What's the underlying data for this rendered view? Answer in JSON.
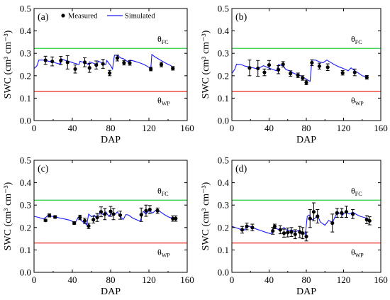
{
  "chart_data": [
    {
      "type": "line",
      "panel_label": "(a)",
      "xlabel": "DAP",
      "ylabel": "SWC (cm³ cm⁻³)",
      "xlim": [
        0,
        160
      ],
      "ylim": [
        0,
        0.5
      ],
      "xticks": [
        "0",
        "40",
        "80",
        "120",
        "160"
      ],
      "yticks": [
        "0.0",
        "0.1",
        "0.2",
        "0.3",
        "0.4",
        "0.5"
      ],
      "legend": {
        "measured": "Measured",
        "simulated": "Simulated",
        "position": "top"
      },
      "reference_lines": [
        {
          "label": "θ",
          "sub": "FC",
          "value": 0.322,
          "color": "#2ecc40"
        },
        {
          "label": "θ",
          "sub": "WP",
          "value": 0.131,
          "color": "#e8271c"
        }
      ],
      "series": [
        {
          "name": "Simulated",
          "color": "#1a1aff",
          "x": [
            0,
            3,
            5,
            10,
            15,
            18,
            22,
            27,
            28,
            33,
            36,
            38,
            42,
            47,
            48,
            53,
            57,
            58,
            62,
            66,
            67,
            71,
            75,
            76,
            80,
            82,
            84,
            88,
            90,
            94,
            98,
            100,
            105,
            110,
            115,
            119,
            122,
            123,
            126,
            130,
            134,
            138,
            143,
            145
          ],
          "y": [
            0.232,
            0.244,
            0.27,
            0.27,
            0.265,
            0.262,
            0.258,
            0.252,
            0.276,
            0.268,
            0.264,
            0.262,
            0.256,
            0.25,
            0.265,
            0.258,
            0.25,
            0.262,
            0.256,
            0.25,
            0.265,
            0.258,
            0.25,
            0.268,
            0.245,
            0.23,
            0.292,
            0.29,
            0.28,
            0.275,
            0.262,
            0.27,
            0.265,
            0.258,
            0.25,
            0.24,
            0.232,
            0.295,
            0.285,
            0.275,
            0.265,
            0.255,
            0.245,
            0.235
          ]
        },
        {
          "name": "Measured",
          "type": "scatter",
          "x": [
            12,
            19,
            28,
            35,
            43,
            53,
            58,
            65,
            72,
            79,
            87,
            94,
            100,
            122,
            133,
            145
          ],
          "y": [
            0.269,
            0.264,
            0.268,
            0.26,
            0.23,
            0.26,
            0.235,
            0.248,
            0.253,
            0.212,
            0.279,
            0.258,
            0.257,
            0.23,
            0.25,
            0.233
          ],
          "err": [
            0.018,
            0.02,
            0.018,
            0.03,
            0.018,
            0.02,
            0.02,
            0.018,
            0.02,
            0.012,
            0.013,
            0.01,
            0.01,
            0.008,
            0.01,
            0.008
          ]
        }
      ]
    },
    {
      "type": "line",
      "panel_label": "(b)",
      "xlabel": "DAP",
      "ylabel": "SWC (cm³ cm⁻³)",
      "xlim": [
        0,
        160
      ],
      "ylim": [
        0,
        0.5
      ],
      "xticks": [
        "0",
        "40",
        "80",
        "120",
        "160"
      ],
      "yticks": [
        "0.0",
        "0.1",
        "0.2",
        "0.3",
        "0.4",
        "0.5"
      ],
      "reference_lines": [
        {
          "label": "θ",
          "sub": "FC",
          "value": 0.322,
          "color": "#2ecc40"
        },
        {
          "label": "θ",
          "sub": "WP",
          "value": 0.131,
          "color": "#e8271c"
        }
      ],
      "series": [
        {
          "name": "Simulated",
          "color": "#1a1aff",
          "x": [
            0,
            3,
            5,
            10,
            14,
            18,
            22,
            26,
            30,
            34,
            37,
            40,
            44,
            48,
            50,
            55,
            58,
            62,
            66,
            70,
            74,
            78,
            81,
            84,
            86,
            90,
            94,
            98,
            102,
            106,
            110,
            115,
            120,
            125,
            128,
            132,
            136,
            140,
            145
          ],
          "y": [
            0.21,
            0.228,
            0.252,
            0.25,
            0.243,
            0.24,
            0.236,
            0.232,
            0.236,
            0.245,
            0.24,
            0.234,
            0.228,
            0.222,
            0.25,
            0.244,
            0.228,
            0.222,
            0.212,
            0.205,
            0.2,
            0.19,
            0.182,
            0.175,
            0.27,
            0.27,
            0.262,
            0.258,
            0.27,
            0.26,
            0.25,
            0.24,
            0.232,
            0.222,
            0.235,
            0.222,
            0.212,
            0.2,
            0.195
          ]
        },
        {
          "name": "Measured",
          "type": "scatter",
          "x": [
            19,
            28,
            35,
            40,
            50,
            55,
            63,
            71,
            76,
            80,
            86,
            94,
            103,
            119,
            132,
            145
          ],
          "y": [
            0.235,
            0.233,
            0.215,
            0.248,
            0.227,
            0.251,
            0.21,
            0.202,
            0.19,
            0.17,
            0.258,
            0.243,
            0.238,
            0.213,
            0.215,
            0.193
          ],
          "err": [
            0.035,
            0.035,
            0.015,
            0.02,
            0.018,
            0.012,
            0.012,
            0.01,
            0.01,
            0.01,
            0.013,
            0.013,
            0.015,
            0.01,
            0.015,
            0.008
          ]
        }
      ]
    },
    {
      "type": "line",
      "panel_label": "(c)",
      "xlabel": "DAP",
      "ylabel": "SWC (cm³ cm⁻³)",
      "xlim": [
        0,
        160
      ],
      "ylim": [
        0,
        0.5
      ],
      "xticks": [
        "0",
        "40",
        "80",
        "120",
        "160"
      ],
      "yticks": [
        "0.0",
        "0.1",
        "0.2",
        "0.3",
        "0.4",
        "0.5"
      ],
      "reference_lines": [
        {
          "label": "θ",
          "sub": "FC",
          "value": 0.322,
          "color": "#2ecc40"
        },
        {
          "label": "θ",
          "sub": "WP",
          "value": 0.131,
          "color": "#e8271c"
        }
      ],
      "series": [
        {
          "name": "Simulated",
          "color": "#1a1aff",
          "x": [
            0,
            5,
            10,
            14,
            18,
            22,
            27,
            32,
            38,
            43,
            46,
            49,
            52,
            55,
            57,
            60,
            63,
            66,
            69,
            72,
            75,
            78,
            81,
            84,
            87,
            90,
            93,
            96,
            99,
            103,
            107,
            111,
            114,
            117,
            120,
            124,
            128,
            132,
            136,
            140,
            145,
            148
          ],
          "y": [
            0.25,
            0.245,
            0.238,
            0.252,
            0.25,
            0.248,
            0.242,
            0.238,
            0.232,
            0.22,
            0.245,
            0.232,
            0.222,
            0.212,
            0.26,
            0.248,
            0.255,
            0.238,
            0.27,
            0.258,
            0.27,
            0.25,
            0.265,
            0.255,
            0.27,
            0.25,
            0.235,
            0.258,
            0.255,
            0.242,
            0.235,
            0.228,
            0.272,
            0.26,
            0.275,
            0.265,
            0.28,
            0.27,
            0.258,
            0.248,
            0.24,
            0.235
          ]
        },
        {
          "name": "Measured",
          "type": "scatter",
          "x": [
            12,
            16,
            22,
            42,
            48,
            53,
            57,
            62,
            66,
            70,
            74,
            80,
            83,
            90,
            112,
            117,
            121,
            129,
            145,
            148
          ],
          "y": [
            0.232,
            0.254,
            0.247,
            0.22,
            0.245,
            0.23,
            0.207,
            0.235,
            0.245,
            0.27,
            0.26,
            0.272,
            0.26,
            0.255,
            0.257,
            0.275,
            0.28,
            0.275,
            0.24,
            0.24
          ],
          "err": [
            0.005,
            0.007,
            0.006,
            0.006,
            0.01,
            0.012,
            0.012,
            0.015,
            0.018,
            0.022,
            0.025,
            0.022,
            0.025,
            0.018,
            0.03,
            0.025,
            0.018,
            0.012,
            0.012,
            0.012
          ]
        }
      ]
    },
    {
      "type": "line",
      "panel_label": "(d)",
      "xlabel": "DAP",
      "ylabel": "SWC (cm³ cm⁻³)",
      "xlim": [
        0,
        160
      ],
      "ylim": [
        0,
        0.5
      ],
      "xticks": [
        "0",
        "40",
        "80",
        "120",
        "160"
      ],
      "yticks": [
        "0.0",
        "0.1",
        "0.2",
        "0.3",
        "0.4",
        "0.5"
      ],
      "reference_lines": [
        {
          "label": "θ",
          "sub": "FC",
          "value": 0.322,
          "color": "#2ecc40"
        },
        {
          "label": "θ",
          "sub": "WP",
          "value": 0.131,
          "color": "#e8271c"
        }
      ],
      "series": [
        {
          "name": "Simulated",
          "color": "#1a1aff",
          "x": [
            0,
            5,
            9,
            13,
            17,
            22,
            27,
            32,
            37,
            42,
            45,
            48,
            52,
            56,
            60,
            64,
            68,
            72,
            76,
            79,
            81,
            83,
            86,
            89,
            92,
            95,
            100,
            104,
            108,
            112,
            116,
            119,
            122,
            126,
            130,
            134,
            138,
            142,
            146,
            148
          ],
          "y": [
            0.205,
            0.198,
            0.192,
            0.188,
            0.208,
            0.2,
            0.192,
            0.185,
            0.178,
            0.172,
            0.2,
            0.195,
            0.188,
            0.2,
            0.185,
            0.19,
            0.18,
            0.188,
            0.175,
            0.17,
            0.25,
            0.255,
            0.235,
            0.24,
            0.255,
            0.225,
            0.21,
            0.232,
            0.222,
            0.258,
            0.265,
            0.255,
            0.27,
            0.26,
            0.268,
            0.258,
            0.25,
            0.245,
            0.24,
            0.232
          ]
        },
        {
          "name": "Measured",
          "type": "scatter",
          "x": [
            11,
            16,
            22,
            44,
            46,
            52,
            56,
            60,
            64,
            68,
            73,
            76,
            80,
            84,
            88,
            92,
            108,
            113,
            118,
            123,
            130,
            145,
            148
          ],
          "y": [
            0.19,
            0.205,
            0.2,
            0.185,
            0.205,
            0.19,
            0.175,
            0.178,
            0.18,
            0.17,
            0.18,
            0.175,
            0.16,
            0.24,
            0.27,
            0.25,
            0.22,
            0.265,
            0.265,
            0.27,
            0.26,
            0.235,
            0.23
          ],
          "err": [
            0.015,
            0.015,
            0.015,
            0.015,
            0.01,
            0.018,
            0.018,
            0.02,
            0.02,
            0.02,
            0.025,
            0.025,
            0.02,
            0.04,
            0.04,
            0.03,
            0.04,
            0.02,
            0.02,
            0.025,
            0.02,
            0.018,
            0.018
          ]
        }
      ]
    }
  ]
}
